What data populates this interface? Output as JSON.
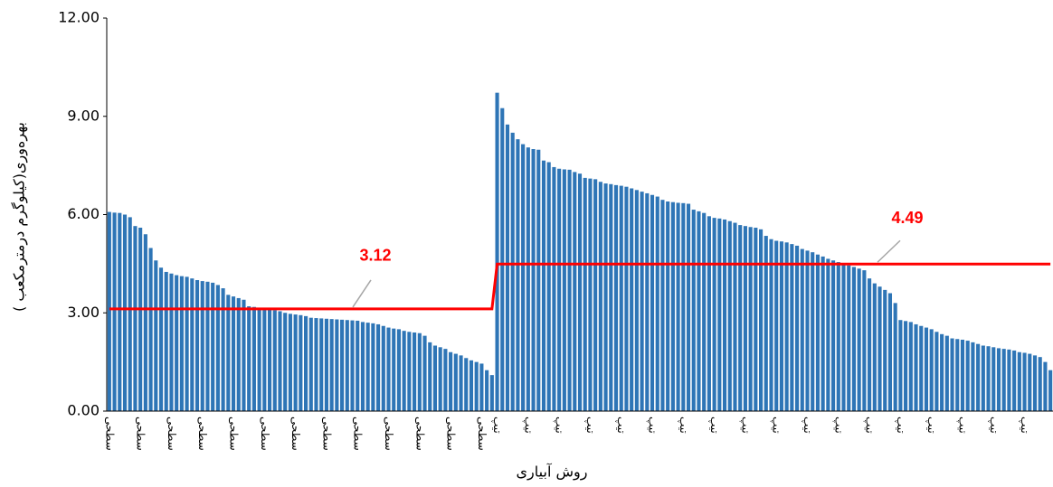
{
  "chart_data": {
    "type": "bar",
    "y_label": "بهره‌وری(کیلوگرم درمترمکعب )",
    "x_label": "روش آبیاری",
    "ylim": [
      0,
      12
    ],
    "yticks": [
      {
        "value": 0,
        "label": "0.00"
      },
      {
        "value": 3,
        "label": "3.00"
      },
      {
        "value": 6,
        "label": "6.00"
      },
      {
        "value": 9,
        "label": "9.00"
      },
      {
        "value": 12,
        "label": "12.00"
      }
    ],
    "grid": false,
    "categories": [
      "سطحی",
      null,
      null,
      null,
      null,
      null,
      "سطحی",
      null,
      null,
      null,
      null,
      null,
      "سطحی",
      null,
      null,
      null,
      null,
      null,
      "سطحی",
      null,
      null,
      null,
      null,
      null,
      "سطحی",
      null,
      null,
      null,
      null,
      null,
      "سطحی",
      null,
      null,
      null,
      null,
      null,
      "سطحی",
      null,
      null,
      null,
      null,
      null,
      "سطحی",
      null,
      null,
      null,
      null,
      null,
      "سطحی",
      null,
      null,
      null,
      null,
      null,
      "سطحی",
      null,
      null,
      null,
      null,
      null,
      "سطحی",
      null,
      null,
      null,
      null,
      null,
      "سطحی",
      null,
      null,
      null,
      null,
      null,
      "سطحی",
      null,
      null,
      "تیپ",
      null,
      null,
      null,
      null,
      null,
      "تیپ",
      null,
      null,
      null,
      null,
      null,
      "تیپ",
      null,
      null,
      null,
      null,
      null,
      "تیپ",
      null,
      null,
      null,
      null,
      null,
      "تیپ",
      null,
      null,
      null,
      null,
      null,
      "تیپ",
      null,
      null,
      null,
      null,
      null,
      "تیپ",
      null,
      null,
      null,
      null,
      null,
      "تیپ",
      null,
      null,
      null,
      null,
      null,
      "تیپ",
      null,
      null,
      null,
      null,
      null,
      "تیپ",
      null,
      null,
      null,
      null,
      null,
      "تیپ",
      null,
      null,
      null,
      null,
      null,
      "تیپ",
      null,
      null,
      null,
      null,
      null,
      "تیپ",
      null,
      null,
      null,
      null,
      null,
      "تیپ",
      null,
      null,
      null,
      null,
      null,
      "تیپ",
      null,
      null,
      null,
      null,
      null,
      "تیپ",
      null,
      null,
      null,
      null,
      null,
      "تیپ",
      null,
      null,
      null,
      null,
      null,
      "تیپ",
      null,
      null,
      null,
      null,
      null
    ],
    "series": [
      {
        "type": "bar",
        "color": "#2e75b6",
        "values": [
          6.08,
          6.06,
          6.05,
          6.0,
          5.92,
          5.65,
          5.6,
          5.4,
          4.98,
          4.6,
          4.38,
          4.25,
          4.2,
          4.15,
          4.12,
          4.1,
          4.05,
          4.0,
          3.97,
          3.95,
          3.92,
          3.85,
          3.75,
          3.55,
          3.5,
          3.45,
          3.4,
          3.2,
          3.18,
          3.15,
          3.13,
          3.1,
          3.08,
          3.05,
          3.0,
          2.97,
          2.95,
          2.93,
          2.9,
          2.85,
          2.84,
          2.83,
          2.82,
          2.81,
          2.8,
          2.79,
          2.78,
          2.77,
          2.76,
          2.72,
          2.7,
          2.68,
          2.65,
          2.6,
          2.55,
          2.52,
          2.5,
          2.45,
          2.42,
          2.4,
          2.38,
          2.3,
          2.1,
          2.0,
          1.95,
          1.9,
          1.8,
          1.75,
          1.7,
          1.62,
          1.55,
          1.5,
          1.45,
          1.25,
          1.1,
          9.72,
          9.25,
          8.75,
          8.5,
          8.3,
          8.15,
          8.05,
          8.0,
          7.98,
          7.65,
          7.6,
          7.45,
          7.4,
          7.38,
          7.37,
          7.3,
          7.25,
          7.12,
          7.1,
          7.08,
          7.0,
          6.95,
          6.93,
          6.9,
          6.88,
          6.85,
          6.8,
          6.75,
          6.7,
          6.65,
          6.6,
          6.55,
          6.45,
          6.4,
          6.38,
          6.36,
          6.35,
          6.33,
          6.15,
          6.1,
          6.05,
          5.95,
          5.9,
          5.88,
          5.85,
          5.8,
          5.75,
          5.68,
          5.65,
          5.62,
          5.6,
          5.55,
          5.35,
          5.25,
          5.2,
          5.18,
          5.15,
          5.1,
          5.05,
          4.95,
          4.9,
          4.85,
          4.78,
          4.72,
          4.65,
          4.6,
          4.55,
          4.5,
          4.45,
          4.4,
          4.35,
          4.3,
          4.05,
          3.9,
          3.8,
          3.7,
          3.6,
          3.3,
          2.78,
          2.75,
          2.72,
          2.65,
          2.6,
          2.55,
          2.5,
          2.42,
          2.35,
          2.3,
          2.22,
          2.2,
          2.18,
          2.15,
          2.1,
          2.05,
          2.0,
          1.98,
          1.95,
          1.92,
          1.9,
          1.88,
          1.85,
          1.8,
          1.78,
          1.75,
          1.7,
          1.65,
          1.5,
          1.25
        ]
      },
      {
        "type": "line",
        "color": "#ff0000",
        "values": [
          3.12,
          3.12,
          3.12,
          3.12,
          3.12,
          3.12,
          3.12,
          3.12,
          3.12,
          3.12,
          3.12,
          3.12,
          3.12,
          3.12,
          3.12,
          3.12,
          3.12,
          3.12,
          3.12,
          3.12,
          3.12,
          3.12,
          3.12,
          3.12,
          3.12,
          3.12,
          3.12,
          3.12,
          3.12,
          3.12,
          3.12,
          3.12,
          3.12,
          3.12,
          3.12,
          3.12,
          3.12,
          3.12,
          3.12,
          3.12,
          3.12,
          3.12,
          3.12,
          3.12,
          3.12,
          3.12,
          3.12,
          3.12,
          3.12,
          3.12,
          3.12,
          3.12,
          3.12,
          3.12,
          3.12,
          3.12,
          3.12,
          3.12,
          3.12,
          3.12,
          3.12,
          3.12,
          3.12,
          3.12,
          3.12,
          3.12,
          3.12,
          3.12,
          3.12,
          3.12,
          3.12,
          3.12,
          3.12,
          3.12,
          3.12,
          4.49,
          4.49,
          4.49,
          4.49,
          4.49,
          4.49,
          4.49,
          4.49,
          4.49,
          4.49,
          4.49,
          4.49,
          4.49,
          4.49,
          4.49,
          4.49,
          4.49,
          4.49,
          4.49,
          4.49,
          4.49,
          4.49,
          4.49,
          4.49,
          4.49,
          4.49,
          4.49,
          4.49,
          4.49,
          4.49,
          4.49,
          4.49,
          4.49,
          4.49,
          4.49,
          4.49,
          4.49,
          4.49,
          4.49,
          4.49,
          4.49,
          4.49,
          4.49,
          4.49,
          4.49,
          4.49,
          4.49,
          4.49,
          4.49,
          4.49,
          4.49,
          4.49,
          4.49,
          4.49,
          4.49,
          4.49,
          4.49,
          4.49,
          4.49,
          4.49,
          4.49,
          4.49,
          4.49,
          4.49,
          4.49,
          4.49,
          4.49,
          4.49,
          4.49,
          4.49,
          4.49,
          4.49,
          4.49,
          4.49,
          4.49,
          4.49,
          4.49,
          4.49,
          4.49,
          4.49,
          4.49,
          4.49,
          4.49,
          4.49,
          4.49,
          4.49,
          4.49,
          4.49,
          4.49,
          4.49,
          4.49,
          4.49,
          4.49,
          4.49,
          4.49,
          4.49,
          4.49,
          4.49,
          4.49,
          4.49,
          4.49,
          4.49,
          4.49,
          4.49,
          4.49,
          4.49,
          4.49,
          4.49
        ]
      }
    ]
  }
}
